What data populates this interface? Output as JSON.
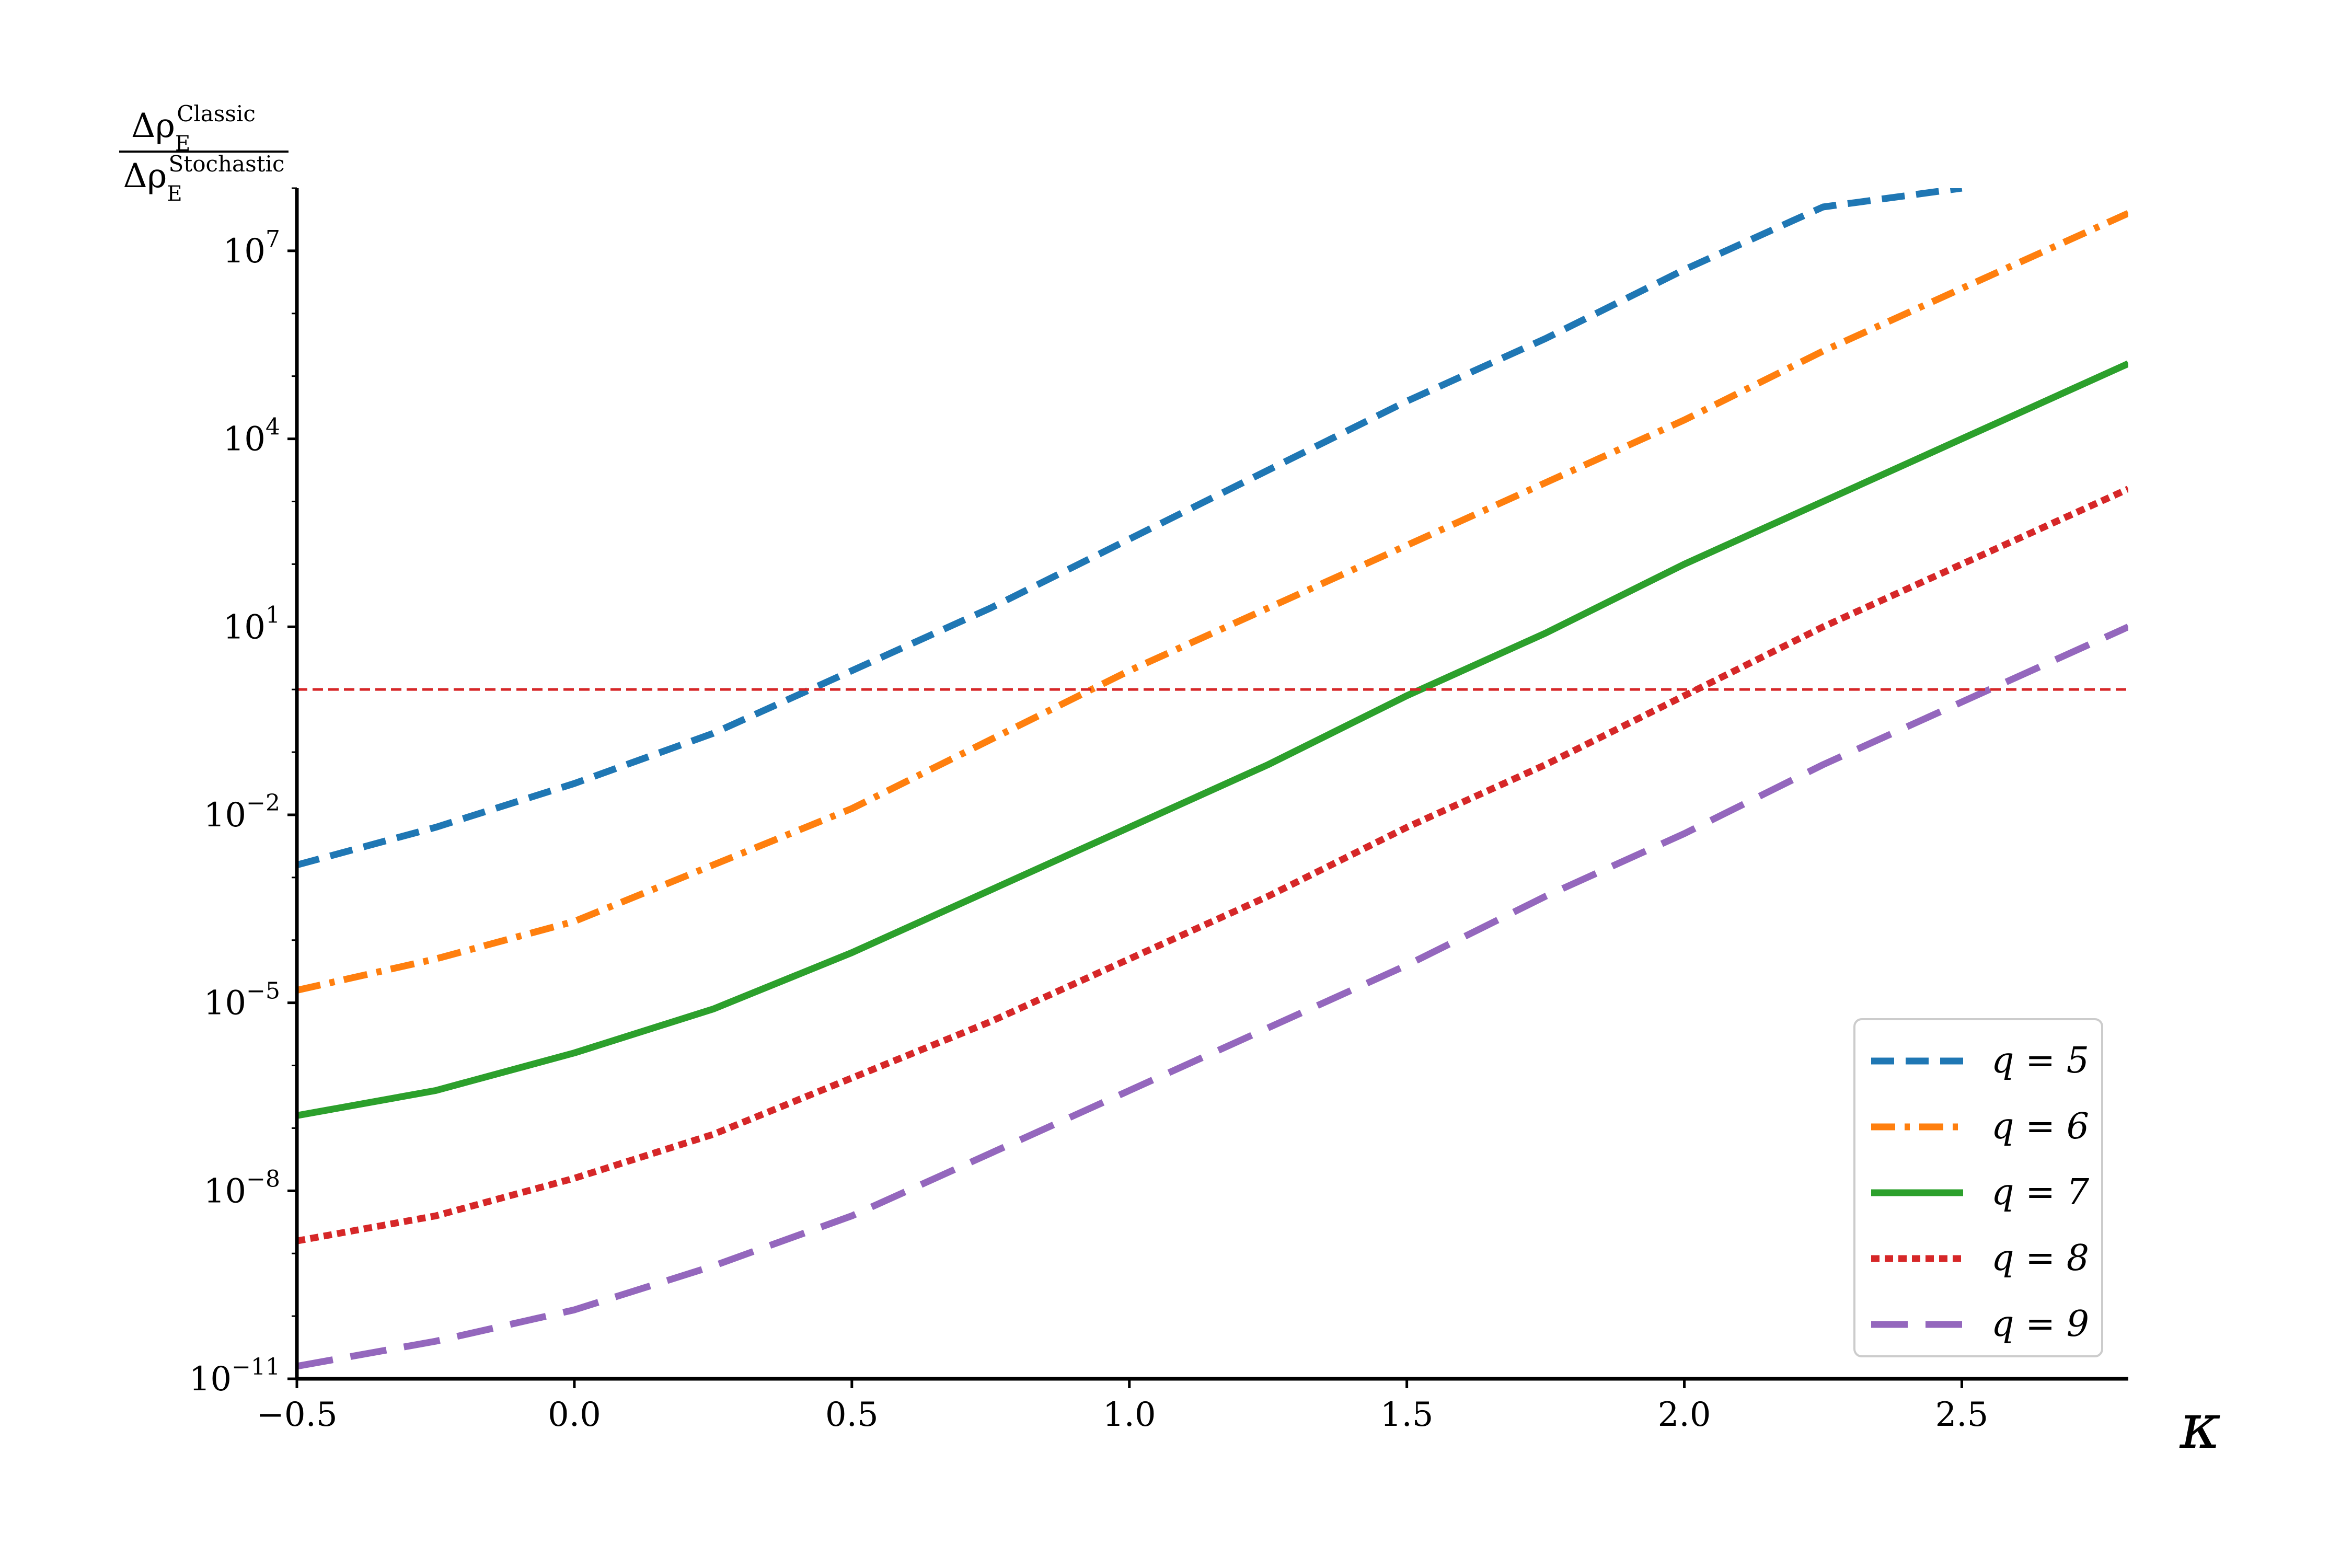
{
  "chart_data": {
    "type": "line",
    "xlabel": "κ",
    "ylabel": {
      "numerator": "Δρ",
      "numerator_sub": "E",
      "numerator_sup": "Classic",
      "denominator": "Δρ",
      "denominator_sub": "E",
      "denominator_sup": "Stochastic"
    },
    "xlim": [
      -0.5,
      2.8
    ],
    "ylim_log10": [
      -11,
      8
    ],
    "yscale": "log",
    "xticks": [
      {
        "value": -0.5,
        "label": "−0.5"
      },
      {
        "value": 0.0,
        "label": "0.0"
      },
      {
        "value": 0.5,
        "label": "0.5"
      },
      {
        "value": 1.0,
        "label": "1.0"
      },
      {
        "value": 1.5,
        "label": "1.5"
      },
      {
        "value": 2.0,
        "label": "2.0"
      },
      {
        "value": 2.5,
        "label": "2.5"
      }
    ],
    "yticks": [
      {
        "exp": 7,
        "base": "10",
        "sup": "7"
      },
      {
        "exp": 4,
        "base": "10",
        "sup": "4"
      },
      {
        "exp": 1,
        "base": "10",
        "sup": "1"
      },
      {
        "exp": -2,
        "base": "10",
        "sup": "−2"
      },
      {
        "exp": -5,
        "base": "10",
        "sup": "−5"
      },
      {
        "exp": -8,
        "base": "10",
        "sup": "−8"
      },
      {
        "exp": -11,
        "base": "10",
        "sup": "−11"
      }
    ],
    "reference_line": {
      "y": 1,
      "color": "#d62728",
      "style": "dashed"
    },
    "grid": false,
    "legend_position": "bottom-right",
    "series": [
      {
        "name": "q = 5",
        "color": "#1f77b4",
        "style": "dashed",
        "x": [
          -0.5,
          -0.25,
          0.0,
          0.25,
          0.5,
          0.75,
          1.0,
          1.25,
          1.5,
          1.75,
          2.0,
          2.25,
          2.5
        ],
        "log10_y": [
          -2.8,
          -2.2,
          -1.5,
          -0.7,
          0.3,
          1.3,
          2.4,
          3.5,
          4.6,
          5.6,
          6.7,
          7.7,
          8.0
        ]
      },
      {
        "name": "q = 6",
        "color": "#ff7f0e",
        "style": "dashdot",
        "x": [
          -0.5,
          -0.25,
          0.0,
          0.25,
          0.5,
          0.75,
          1.0,
          1.25,
          1.5,
          1.75,
          2.0,
          2.25,
          2.5,
          2.8
        ],
        "log10_y": [
          -4.8,
          -4.3,
          -3.7,
          -2.8,
          -1.9,
          -0.8,
          0.3,
          1.3,
          2.3,
          3.3,
          4.3,
          5.4,
          6.4,
          7.6
        ]
      },
      {
        "name": "q = 7",
        "color": "#2ca02c",
        "style": "solid",
        "x": [
          -0.5,
          -0.25,
          0.0,
          0.25,
          0.5,
          0.75,
          1.0,
          1.25,
          1.5,
          1.75,
          2.0,
          2.25,
          2.5,
          2.8
        ],
        "log10_y": [
          -6.8,
          -6.4,
          -5.8,
          -5.1,
          -4.2,
          -3.2,
          -2.2,
          -1.2,
          -0.1,
          0.9,
          2.0,
          3.0,
          4.0,
          5.2
        ]
      },
      {
        "name": "q = 8",
        "color": "#d62728",
        "style": "dotted",
        "x": [
          -0.5,
          -0.25,
          0.0,
          0.25,
          0.5,
          0.75,
          1.0,
          1.25,
          1.5,
          1.75,
          2.0,
          2.25,
          2.5,
          2.8
        ],
        "log10_y": [
          -8.8,
          -8.4,
          -7.8,
          -7.1,
          -6.2,
          -5.3,
          -4.3,
          -3.3,
          -2.2,
          -1.2,
          -0.1,
          1.0,
          2.0,
          3.2
        ]
      },
      {
        "name": "q = 9",
        "color": "#9467bd",
        "style": "longdash",
        "x": [
          -0.5,
          -0.25,
          0.0,
          0.25,
          0.5,
          0.75,
          1.0,
          1.25,
          1.5,
          1.75,
          2.0,
          2.25,
          2.5,
          2.8
        ],
        "log10_y": [
          -10.8,
          -10.4,
          -9.9,
          -9.2,
          -8.4,
          -7.4,
          -6.4,
          -5.4,
          -4.4,
          -3.3,
          -2.3,
          -1.2,
          -0.2,
          1.0
        ]
      }
    ]
  }
}
